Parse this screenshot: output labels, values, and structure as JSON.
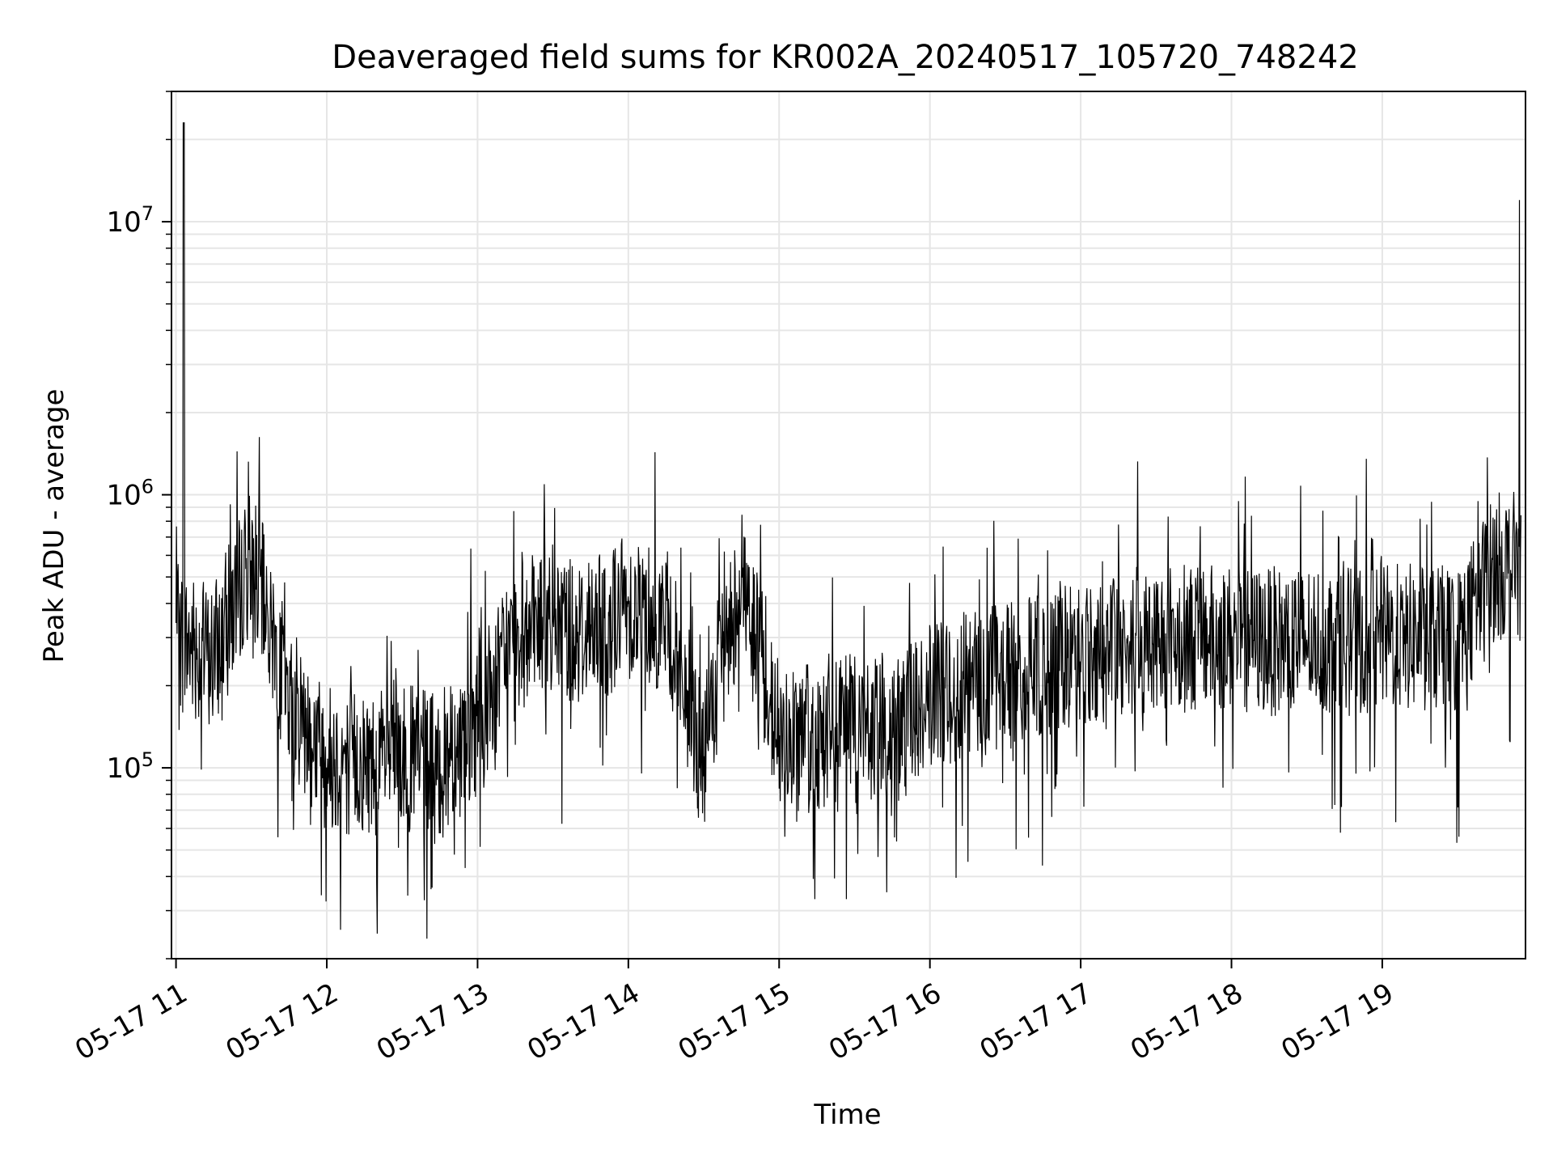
{
  "chart_data": {
    "type": "line",
    "title": "Deaveraged field sums for KR002A_20240517_105720_748242",
    "xlabel": "Time",
    "ylabel": "Peak ADU - average",
    "yscale": "log",
    "ylim": [
      20000,
      30000000
    ],
    "xlim_hours": [
      10.97,
      19.95
    ],
    "x_tick_labels": [
      "05-17 11",
      "05-17 12",
      "05-17 13",
      "05-17 14",
      "05-17 15",
      "05-17 16",
      "05-17 17",
      "05-17 18",
      "05-17 19"
    ],
    "y_tick_labels": [
      {
        "base": "10",
        "exp": "5"
      },
      {
        "base": "10",
        "exp": "6"
      },
      {
        "base": "10",
        "exp": "7"
      }
    ],
    "grid": true,
    "line_color": "#000000",
    "series": [
      {
        "x": [
          "2024-05-17 11:00",
          "2024-05-17 11:15",
          "2024-05-17 11:30",
          "2024-05-17 11:45",
          "2024-05-17 12:00",
          "2024-05-17 12:15",
          "2024-05-17 12:30",
          "2024-05-17 12:45",
          "2024-05-17 13:00",
          "2024-05-17 13:15",
          "2024-05-17 13:30",
          "2024-05-17 13:45",
          "2024-05-17 14:00",
          "2024-05-17 14:15",
          "2024-05-17 14:30",
          "2024-05-17 14:45",
          "2024-05-17 15:00",
          "2024-05-17 15:15",
          "2024-05-17 15:30",
          "2024-05-17 15:45",
          "2024-05-17 16:00",
          "2024-05-17 16:15",
          "2024-05-17 16:30",
          "2024-05-17 16:45",
          "2024-05-17 17:00",
          "2024-05-17 17:15",
          "2024-05-17 17:30",
          "2024-05-17 17:45",
          "2024-05-17 18:00",
          "2024-05-17 18:15",
          "2024-05-17 18:30",
          "2024-05-17 18:45",
          "2024-05-17 19:00",
          "2024-05-17 19:15",
          "2024-05-17 19:30",
          "2024-05-17 19:45"
        ],
        "y": [
          300000,
          250000,
          600000,
          180000,
          110000,
          105000,
          110000,
          100000,
          150000,
          300000,
          350000,
          300000,
          400000,
          350000,
          110000,
          500000,
          130000,
          130000,
          140000,
          130000,
          180000,
          200000,
          220000,
          230000,
          260000,
          280000,
          300000,
          300000,
          300000,
          290000,
          300000,
          290000,
          300000,
          300000,
          290000,
          550000
        ]
      }
    ]
  }
}
